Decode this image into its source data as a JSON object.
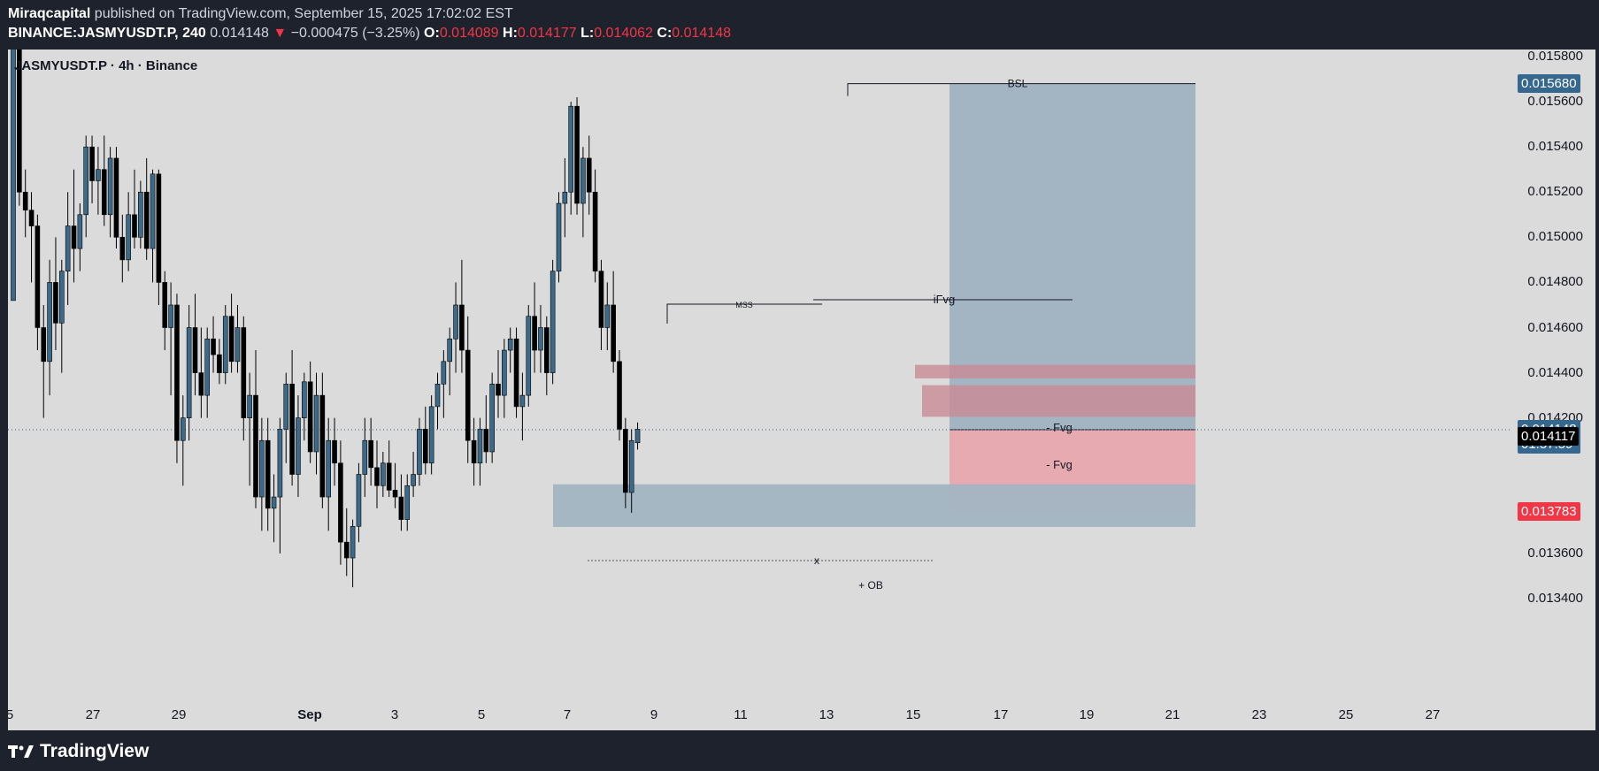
{
  "header": {
    "author": "Miraqcapital",
    "published": " published on TradingView.com, September 15, 2025 17:02:02 EST",
    "symbol": "BINANCE:JASMYUSDT.P, 240",
    "last": "0.014148",
    "change_arrow": "▼",
    "change": "−0.000475 (−3.25%)",
    "o_label": "O:",
    "o_val": "0.014089",
    "h_label": "H:",
    "h_val": "0.014177",
    "l_label": "L:",
    "l_val": "0.014062",
    "c_label": "C:",
    "c_val": "0.014148"
  },
  "footer": {
    "logo_text": "TradingView"
  },
  "colors": {
    "up_candle": "#3b6a8a",
    "down_candle": "#000000",
    "blue_zone": "#a3b5c3",
    "red_zone": "#e8a4ab",
    "fvg_zone": "#c98b95",
    "price_badge": "#35678f",
    "stop_badge": "#f23645"
  },
  "chart_data": {
    "type": "candlestick",
    "title": "JASMYUSDT.P · 4h · Binance",
    "y_ticks": [
      "0.015800",
      "0.015600",
      "0.015400",
      "0.015200",
      "0.015000",
      "0.014800",
      "0.014600",
      "0.014400",
      "0.014200",
      "0.013600",
      "0.013400"
    ],
    "x_ticks": [
      "5",
      "27",
      "29",
      "Sep",
      "3",
      "5",
      "7",
      "9",
      "11",
      "13",
      "15",
      "17",
      "19",
      "21",
      "23",
      "25",
      "27"
    ],
    "ylim": [
      0.01333,
      0.01588
    ],
    "price_badges": [
      {
        "label": "0.015680",
        "value": 0.01568,
        "color": "#35678f"
      },
      {
        "label": "0.014148",
        "value": 0.014148,
        "color": "#35678f",
        "sub": "01:57:59"
      },
      {
        "label": "0.014117",
        "value": 0.014117,
        "color": "#000000"
      },
      {
        "label": "0.013783",
        "value": 0.013783,
        "color": "#f23645"
      }
    ],
    "annotations": {
      "bsl": "BSL",
      "mss": "MSS",
      "ifvg": "iFvg",
      "fvg1": "- Fvg",
      "fvg2": "- Fvg",
      "x": "x",
      "ob": "+ OB"
    },
    "zones": {
      "target_top": 0.01568,
      "entry": 0.014148,
      "stop": 0.013783,
      "fvg1": [
        0.014375,
        0.014435
      ],
      "fvg2": [
        0.014205,
        0.014345
      ],
      "ob": [
        0.013717,
        0.013906
      ]
    },
    "candles": [
      [
        0.01472,
        0.01599,
        0.01472,
        0.01595
      ],
      [
        0.01595,
        0.01605,
        0.01514,
        0.0152
      ],
      [
        0.0152,
        0.0153,
        0.015,
        0.01512
      ],
      [
        0.01512,
        0.0152,
        0.0148,
        0.01505
      ],
      [
        0.01505,
        0.0151,
        0.0145,
        0.0146
      ],
      [
        0.0146,
        0.0147,
        0.0142,
        0.01445
      ],
      [
        0.01445,
        0.0149,
        0.0143,
        0.0148
      ],
      [
        0.0148,
        0.015,
        0.0145,
        0.01462
      ],
      [
        0.01462,
        0.0149,
        0.0144,
        0.01485
      ],
      [
        0.01485,
        0.0152,
        0.0147,
        0.01505
      ],
      [
        0.01505,
        0.0153,
        0.0148,
        0.01495
      ],
      [
        0.01495,
        0.01515,
        0.01485,
        0.0151
      ],
      [
        0.0151,
        0.01545,
        0.015,
        0.0154
      ],
      [
        0.0154,
        0.01545,
        0.01515,
        0.01525
      ],
      [
        0.01525,
        0.0154,
        0.0151,
        0.0153
      ],
      [
        0.0153,
        0.01545,
        0.01505,
        0.0151
      ],
      [
        0.0151,
        0.0154,
        0.015,
        0.01535
      ],
      [
        0.01535,
        0.0154,
        0.01495,
        0.015
      ],
      [
        0.015,
        0.0151,
        0.0148,
        0.0149
      ],
      [
        0.0149,
        0.0152,
        0.01485,
        0.0151
      ],
      [
        0.0151,
        0.0153,
        0.01495,
        0.015
      ],
      [
        0.015,
        0.01525,
        0.01495,
        0.0152
      ],
      [
        0.0152,
        0.01535,
        0.0149,
        0.01495
      ],
      [
        0.01495,
        0.0153,
        0.0148,
        0.01528
      ],
      [
        0.01528,
        0.0153,
        0.0147,
        0.0148
      ],
      [
        0.0148,
        0.01485,
        0.0145,
        0.0146
      ],
      [
        0.0146,
        0.0148,
        0.0143,
        0.0147
      ],
      [
        0.0147,
        0.01475,
        0.014,
        0.0141
      ],
      [
        0.0141,
        0.0143,
        0.0139,
        0.0142
      ],
      [
        0.0142,
        0.0147,
        0.0141,
        0.0146
      ],
      [
        0.0146,
        0.01475,
        0.0143,
        0.0144
      ],
      [
        0.0144,
        0.0146,
        0.0142,
        0.0143
      ],
      [
        0.0143,
        0.0146,
        0.0142,
        0.01455
      ],
      [
        0.01455,
        0.01465,
        0.0144,
        0.01448
      ],
      [
        0.01448,
        0.01455,
        0.01435,
        0.0144
      ],
      [
        0.0144,
        0.0147,
        0.01435,
        0.01465
      ],
      [
        0.01465,
        0.01475,
        0.0144,
        0.01445
      ],
      [
        0.01445,
        0.0147,
        0.0144,
        0.0146
      ],
      [
        0.0146,
        0.01465,
        0.0141,
        0.0142
      ],
      [
        0.0142,
        0.0144,
        0.0139,
        0.0143
      ],
      [
        0.0143,
        0.0145,
        0.0138,
        0.01385
      ],
      [
        0.01385,
        0.0142,
        0.0137,
        0.0141
      ],
      [
        0.0141,
        0.0142,
        0.0137,
        0.0138
      ],
      [
        0.0138,
        0.01395,
        0.01365,
        0.01385
      ],
      [
        0.01385,
        0.0142,
        0.0136,
        0.01415
      ],
      [
        0.01415,
        0.0144,
        0.014,
        0.01435
      ],
      [
        0.01435,
        0.0145,
        0.0139,
        0.01395
      ],
      [
        0.01395,
        0.0143,
        0.01385,
        0.0142
      ],
      [
        0.0142,
        0.0144,
        0.0141,
        0.01436
      ],
      [
        0.01436,
        0.01445,
        0.014,
        0.01405
      ],
      [
        0.01405,
        0.0144,
        0.01395,
        0.0143
      ],
      [
        0.0143,
        0.0144,
        0.0138,
        0.01385
      ],
      [
        0.01385,
        0.0142,
        0.0137,
        0.0141
      ],
      [
        0.0141,
        0.0142,
        0.0139,
        0.014
      ],
      [
        0.014,
        0.0141,
        0.01355,
        0.01365
      ],
      [
        0.01365,
        0.0138,
        0.0135,
        0.01358
      ],
      [
        0.01358,
        0.01375,
        0.01345,
        0.01372
      ],
      [
        0.01372,
        0.014,
        0.01365,
        0.01395
      ],
      [
        0.01395,
        0.0142,
        0.01385,
        0.0141
      ],
      [
        0.0141,
        0.0142,
        0.0139,
        0.01398
      ],
      [
        0.01398,
        0.0141,
        0.0138,
        0.0139
      ],
      [
        0.0139,
        0.01405,
        0.01385,
        0.014
      ],
      [
        0.014,
        0.0141,
        0.01385,
        0.01388
      ],
      [
        0.01388,
        0.014,
        0.0138,
        0.01385
      ],
      [
        0.01385,
        0.01395,
        0.0137,
        0.01375
      ],
      [
        0.01375,
        0.01395,
        0.0137,
        0.0139
      ],
      [
        0.0139,
        0.01405,
        0.01385,
        0.01395
      ],
      [
        0.01395,
        0.0142,
        0.0139,
        0.01415
      ],
      [
        0.01415,
        0.01425,
        0.01395,
        0.014
      ],
      [
        0.014,
        0.0143,
        0.01395,
        0.01425
      ],
      [
        0.01425,
        0.0144,
        0.01415,
        0.01435
      ],
      [
        0.01435,
        0.0145,
        0.0142,
        0.01445
      ],
      [
        0.01445,
        0.0146,
        0.0143,
        0.01455
      ],
      [
        0.01455,
        0.0148,
        0.0144,
        0.0147
      ],
      [
        0.0147,
        0.0149,
        0.0144,
        0.0145
      ],
      [
        0.0145,
        0.01465,
        0.014,
        0.0141
      ],
      [
        0.0141,
        0.0142,
        0.0139,
        0.014
      ],
      [
        0.014,
        0.0142,
        0.0139,
        0.01415
      ],
      [
        0.01415,
        0.0143,
        0.014,
        0.01405
      ],
      [
        0.01405,
        0.0144,
        0.014,
        0.01435
      ],
      [
        0.01435,
        0.0145,
        0.0142,
        0.0143
      ],
      [
        0.0143,
        0.01455,
        0.0142,
        0.0145
      ],
      [
        0.0145,
        0.0146,
        0.0144,
        0.01455
      ],
      [
        0.01455,
        0.0146,
        0.0142,
        0.01425
      ],
      [
        0.01425,
        0.0144,
        0.0141,
        0.0143
      ],
      [
        0.0143,
        0.0147,
        0.01425,
        0.01465
      ],
      [
        0.01465,
        0.0148,
        0.0144,
        0.0145
      ],
      [
        0.0145,
        0.0147,
        0.0144,
        0.0146
      ],
      [
        0.0146,
        0.01465,
        0.0143,
        0.0144
      ],
      [
        0.0144,
        0.0149,
        0.01435,
        0.01485
      ],
      [
        0.01485,
        0.0152,
        0.0148,
        0.01515
      ],
      [
        0.01515,
        0.01535,
        0.015,
        0.0152
      ],
      [
        0.0152,
        0.0156,
        0.0151,
        0.01558
      ],
      [
        0.01558,
        0.01562,
        0.0151,
        0.01515
      ],
      [
        0.01515,
        0.0154,
        0.015,
        0.01535
      ],
      [
        0.01535,
        0.01545,
        0.0151,
        0.0152
      ],
      [
        0.0152,
        0.0153,
        0.0148,
        0.01485
      ],
      [
        0.01485,
        0.0149,
        0.0145,
        0.0146
      ],
      [
        0.0146,
        0.0148,
        0.0145,
        0.0147
      ],
      [
        0.0147,
        0.01485,
        0.0144,
        0.01445
      ],
      [
        0.01445,
        0.0145,
        0.0141,
        0.01415
      ],
      [
        0.01415,
        0.0142,
        0.0138,
        0.01387
      ],
      [
        0.01387,
        0.01415,
        0.01378,
        0.0141
      ],
      [
        0.01409,
        0.01418,
        0.01406,
        0.01415
      ]
    ]
  }
}
